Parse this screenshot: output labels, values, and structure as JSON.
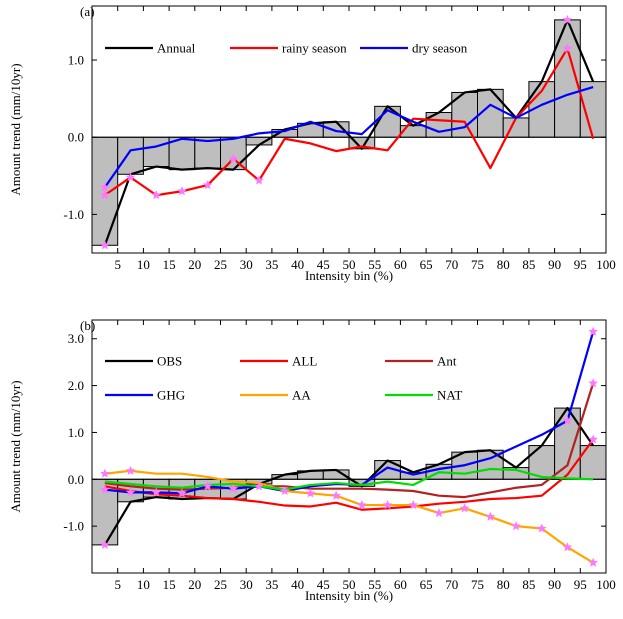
{
  "chart_data": [
    {
      "type": "line",
      "panel_label": "(a)",
      "xlabel": "Intensity bin (%)",
      "ylabel": "Amount trend (mm/10yr)",
      "xlim": [
        0,
        100
      ],
      "ylim": [
        -1.5,
        1.7
      ],
      "xticks": [
        5,
        10,
        15,
        20,
        25,
        30,
        35,
        40,
        45,
        50,
        55,
        60,
        65,
        70,
        75,
        80,
        85,
        90,
        95,
        100
      ],
      "yticks": [
        -1.0,
        0.0,
        1.0
      ],
      "ytick_labels": [
        "-1.0",
        "0.0",
        "1.0"
      ],
      "x": [
        2.5,
        7.5,
        12.5,
        17.5,
        22.5,
        27.5,
        32.5,
        37.5,
        42.5,
        47.5,
        52.5,
        57.5,
        62.5,
        67.5,
        72.5,
        77.5,
        82.5,
        87.5,
        92.5,
        97.5
      ],
      "bars": {
        "color": "#bebebe",
        "values": [
          -1.4,
          -0.48,
          -0.38,
          -0.42,
          -0.4,
          -0.42,
          -0.1,
          0.1,
          0.18,
          0.2,
          -0.15,
          0.4,
          0.15,
          0.32,
          0.58,
          0.62,
          0.25,
          0.72,
          1.52,
          0.72
        ]
      },
      "series": [
        {
          "name": "Annual",
          "color": "#000000",
          "markers": [
            0,
            18
          ],
          "values": [
            -1.4,
            -0.48,
            -0.38,
            -0.42,
            -0.4,
            -0.42,
            -0.1,
            0.1,
            0.18,
            0.2,
            -0.15,
            0.4,
            0.15,
            0.32,
            0.58,
            0.62,
            0.25,
            0.72,
            1.52,
            0.72
          ]
        },
        {
          "name": "rainy season",
          "color": "#ff0000",
          "markers": [
            0,
            1,
            2,
            3,
            4,
            5,
            6,
            18
          ],
          "values": [
            -0.75,
            -0.52,
            -0.75,
            -0.7,
            -0.62,
            -0.28,
            -0.56,
            -0.02,
            -0.08,
            -0.18,
            -0.12,
            -0.17,
            0.24,
            0.22,
            0.2,
            -0.4,
            0.25,
            0.6,
            1.15,
            -0.02
          ]
        },
        {
          "name": "dry season",
          "color": "#0000ff",
          "markers": [
            0
          ],
          "values": [
            -0.65,
            -0.17,
            -0.12,
            -0.02,
            -0.05,
            -0.02,
            0.05,
            0.08,
            0.2,
            0.08,
            0.04,
            0.35,
            0.2,
            0.07,
            0.13,
            0.42,
            0.25,
            0.42,
            0.55,
            0.65
          ]
        }
      ],
      "marker_color": "#ff77ff"
    },
    {
      "type": "line",
      "panel_label": "(b)",
      "xlabel": "Intensity bin (%)",
      "ylabel": "Amount trend (mm/10yr)",
      "xlim": [
        0,
        100
      ],
      "ylim": [
        -2.0,
        3.4
      ],
      "xticks": [
        5,
        10,
        15,
        20,
        25,
        30,
        35,
        40,
        45,
        50,
        55,
        60,
        65,
        70,
        75,
        80,
        85,
        90,
        95,
        100
      ],
      "yticks": [
        -1.0,
        0.0,
        1.0,
        2.0,
        3.0
      ],
      "ytick_labels": [
        "-1.0",
        "0.0",
        "1.0",
        "2.0",
        "3.0"
      ],
      "x": [
        2.5,
        7.5,
        12.5,
        17.5,
        22.5,
        27.5,
        32.5,
        37.5,
        42.5,
        47.5,
        52.5,
        57.5,
        62.5,
        67.5,
        72.5,
        77.5,
        82.5,
        87.5,
        92.5,
        97.5
      ],
      "bars": {
        "color": "#bebebe",
        "values": [
          -1.4,
          -0.48,
          -0.38,
          -0.42,
          -0.4,
          -0.42,
          -0.1,
          0.1,
          0.18,
          0.2,
          -0.15,
          0.4,
          0.15,
          0.32,
          0.58,
          0.62,
          0.25,
          0.72,
          1.52,
          0.72
        ]
      },
      "series": [
        {
          "name": "OBS",
          "color": "#000000",
          "markers": [
            0
          ],
          "values": [
            -1.4,
            -0.48,
            -0.38,
            -0.42,
            -0.4,
            -0.42,
            -0.1,
            0.1,
            0.18,
            0.2,
            -0.15,
            0.4,
            0.15,
            0.32,
            0.58,
            0.62,
            0.25,
            0.72,
            1.52,
            0.72
          ]
        },
        {
          "name": "ALL",
          "color": "#ff0000",
          "markers": [
            19
          ],
          "values": [
            -0.15,
            -0.25,
            -0.32,
            -0.35,
            -0.4,
            -0.42,
            -0.48,
            -0.56,
            -0.58,
            -0.5,
            -0.65,
            -0.62,
            -0.58,
            -0.52,
            -0.48,
            -0.42,
            -0.4,
            -0.35,
            0.1,
            0.85
          ]
        },
        {
          "name": "Ant",
          "color": "#b22222",
          "markers": [
            19
          ],
          "values": [
            -0.08,
            -0.15,
            -0.2,
            -0.22,
            -0.2,
            -0.18,
            -0.15,
            -0.15,
            -0.2,
            -0.2,
            -0.2,
            -0.22,
            -0.25,
            -0.35,
            -0.38,
            -0.28,
            -0.18,
            -0.12,
            0.3,
            2.05
          ]
        },
        {
          "name": "GHG",
          "color": "#0000ff",
          "markers": [
            0,
            1,
            2,
            3,
            4,
            5,
            6,
            7,
            18,
            19
          ],
          "values": [
            -0.22,
            -0.28,
            -0.28,
            -0.3,
            -0.15,
            -0.2,
            -0.15,
            -0.25,
            -0.15,
            -0.1,
            -0.12,
            0.25,
            0.1,
            0.22,
            0.3,
            0.45,
            0.7,
            0.95,
            1.25,
            3.15
          ]
        },
        {
          "name": "AA",
          "color": "#ffa500",
          "markers": [
            0,
            1,
            8,
            9,
            10,
            11,
            12,
            13,
            14,
            15,
            16,
            17,
            18,
            19
          ],
          "values": [
            0.12,
            0.18,
            0.12,
            0.12,
            0.05,
            -0.05,
            -0.08,
            -0.25,
            -0.3,
            -0.35,
            -0.55,
            -0.55,
            -0.55,
            -0.72,
            -0.62,
            -0.8,
            -1.0,
            -1.05,
            -1.45,
            -1.78
          ]
        },
        {
          "name": "NAT",
          "color": "#00dd00",
          "markers": [],
          "values": [
            -0.05,
            -0.1,
            -0.15,
            -0.18,
            -0.12,
            -0.1,
            -0.15,
            -0.22,
            -0.12,
            -0.08,
            -0.12,
            -0.05,
            -0.12,
            0.15,
            0.12,
            0.22,
            0.2,
            0.05,
            0.02,
            0.0
          ]
        }
      ],
      "marker_color": "#ff77ff"
    }
  ]
}
